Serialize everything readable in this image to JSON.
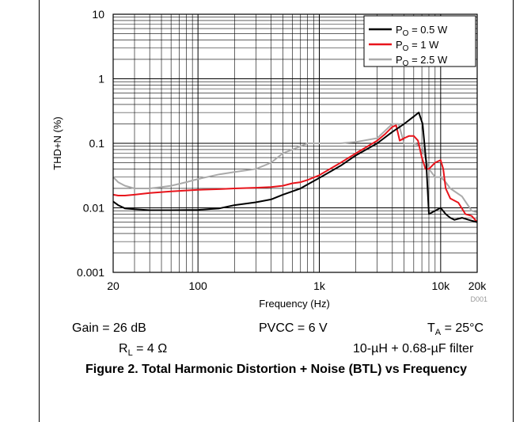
{
  "conditions": {
    "gain": "Gain = 26 dB",
    "pvcc": "PVCC = 6 V",
    "ta_symbol": "T",
    "ta_sub": "A",
    "ta_value": " = 25°C",
    "rl_symbol": "R",
    "rl_sub": "L",
    "rl_value": " = 4 Ω",
    "filter": "10-µH + 0.68-µF filter"
  },
  "caption": "Figure 2. Total Harmonic Distortion + Noise (BTL) vs Frequency",
  "figure_tag": "D001",
  "colors": {
    "black": "#000000",
    "red": "#e8141b",
    "gray": "#aaaaaa"
  },
  "chart_data": {
    "type": "line",
    "xlabel": "Frequency (Hz)",
    "ylabel": "THD+N (%)",
    "x_scale": "log",
    "y_scale": "log",
    "xlim": [
      20,
      20000
    ],
    "ylim": [
      0.001,
      10
    ],
    "x_ticks": [
      {
        "value": 20,
        "label": "20"
      },
      {
        "value": 100,
        "label": "100"
      },
      {
        "value": 1000,
        "label": "1k"
      },
      {
        "value": 10000,
        "label": "10k"
      },
      {
        "value": 20000,
        "label": "20k"
      }
    ],
    "y_ticks": [
      {
        "value": 0.001,
        "label": "0.001"
      },
      {
        "value": 0.01,
        "label": "0.01"
      },
      {
        "value": 0.1,
        "label": "0.1"
      },
      {
        "value": 1,
        "label": "1"
      },
      {
        "value": 10,
        "label": "10"
      }
    ],
    "grid": true,
    "legend_position": "top-right",
    "series": [
      {
        "name_main": "P",
        "name_sub": "O",
        "name_rest": " = 0.5 W",
        "color": "#000000",
        "x": [
          20,
          22,
          25,
          30,
          40,
          60,
          100,
          150,
          200,
          300,
          400,
          500,
          600,
          700,
          800,
          1000,
          1500,
          2000,
          3000,
          4000,
          5000,
          6000,
          6600,
          7100,
          7600,
          8000,
          9000,
          10000,
          11000,
          12000,
          13000,
          15000,
          17000,
          20000
        ],
        "y": [
          0.0125,
          0.011,
          0.0098,
          0.0095,
          0.0092,
          0.0092,
          0.0093,
          0.0098,
          0.011,
          0.0122,
          0.0135,
          0.016,
          0.018,
          0.02,
          0.023,
          0.029,
          0.045,
          0.065,
          0.1,
          0.15,
          0.2,
          0.26,
          0.3,
          0.2,
          0.05,
          0.008,
          0.009,
          0.01,
          0.008,
          0.007,
          0.0065,
          0.007,
          0.0065,
          0.006
        ]
      },
      {
        "name_main": "P",
        "name_sub": "O",
        "name_rest": " = 1 W",
        "color": "#e8141b",
        "x": [
          20,
          22,
          25,
          30,
          40,
          60,
          100,
          150,
          200,
          300,
          400,
          500,
          600,
          700,
          800,
          1000,
          1500,
          2000,
          3000,
          3500,
          4000,
          4300,
          4600,
          5000,
          5500,
          6000,
          6500,
          7000,
          7500,
          8000,
          9000,
          10000,
          10500,
          11000,
          12000,
          14000,
          16000,
          18000,
          20000
        ],
        "y": [
          0.016,
          0.0155,
          0.0155,
          0.016,
          0.017,
          0.018,
          0.019,
          0.0195,
          0.02,
          0.0205,
          0.021,
          0.022,
          0.024,
          0.025,
          0.027,
          0.032,
          0.05,
          0.07,
          0.11,
          0.14,
          0.18,
          0.19,
          0.11,
          0.12,
          0.13,
          0.13,
          0.11,
          0.06,
          0.04,
          0.04,
          0.05,
          0.055,
          0.04,
          0.02,
          0.014,
          0.012,
          0.008,
          0.0075,
          0.006
        ]
      },
      {
        "name_main": "P",
        "name_sub": "O",
        "name_rest": " = 2.5 W",
        "color": "#aaaaaa",
        "x": [
          20,
          22,
          25,
          30,
          40,
          50,
          60,
          80,
          100,
          150,
          200,
          300,
          400,
          500,
          600,
          700,
          800,
          1000,
          1500,
          2000,
          3000,
          4000,
          4500,
          5000,
          5500,
          6000,
          7000,
          8000,
          9000,
          10000,
          11000,
          12000,
          15000,
          18000,
          20000
        ],
        "y": [
          0.03,
          0.025,
          0.022,
          0.02,
          0.02,
          0.021,
          0.022,
          0.025,
          0.028,
          0.033,
          0.036,
          0.04,
          0.05,
          0.07,
          0.08,
          0.09,
          0.1,
          0.1,
          0.1,
          0.105,
          0.12,
          0.2,
          0.2,
          0.1,
          0.1,
          0.1,
          0.09,
          0.04,
          0.03,
          0.03,
          0.025,
          0.02,
          0.015,
          0.009,
          0.0085
        ]
      }
    ]
  }
}
